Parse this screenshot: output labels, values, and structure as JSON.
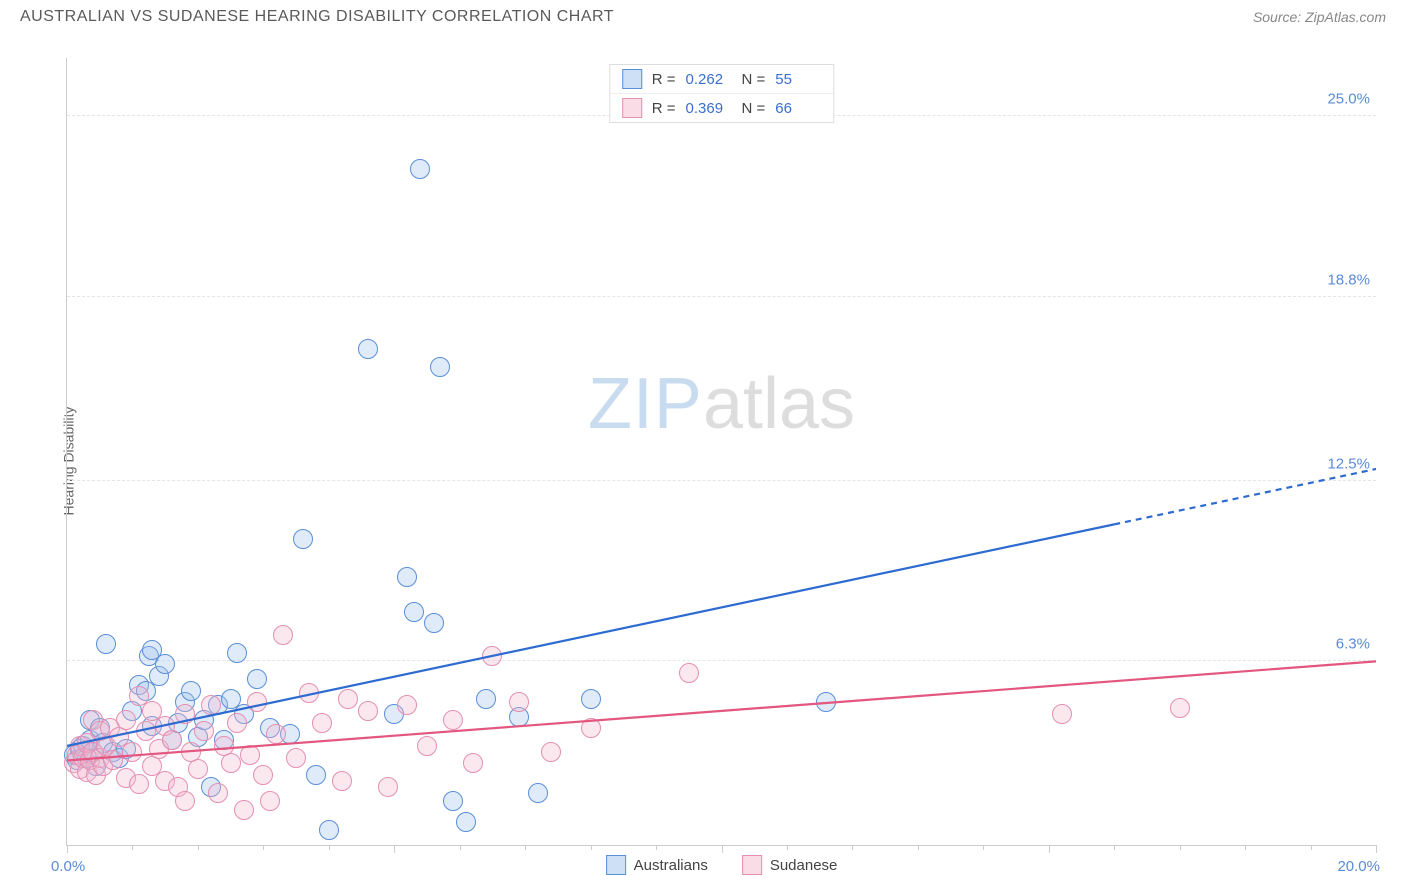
{
  "header": {
    "title": "AUSTRALIAN VS SUDANESE HEARING DISABILITY CORRELATION CHART",
    "source_prefix": "Source: ",
    "source_name": "ZipAtlas.com"
  },
  "chart": {
    "type": "scatter",
    "ylabel": "Hearing Disability",
    "xlim": [
      0,
      20
    ],
    "ylim": [
      0,
      27
    ],
    "x_tick_minor_step": 1,
    "x_tick_major_step": 5,
    "x_axis_labels": {
      "left": "0.0%",
      "right": "20.0%"
    },
    "y_gridlines": [
      {
        "value": 6.3,
        "label": "6.3%"
      },
      {
        "value": 12.5,
        "label": "12.5%"
      },
      {
        "value": 18.8,
        "label": "18.8%"
      },
      {
        "value": 25.0,
        "label": "25.0%"
      }
    ],
    "watermark": {
      "part1": "ZIP",
      "part2": "atlas"
    },
    "marker_radius": 9,
    "marker_border_width": 1.2,
    "marker_fill_opacity": 0.32,
    "background_color": "#ffffff",
    "grid_color": "#e5e5e5",
    "axis_color": "#cccccc",
    "tick_label_color": "#5b8bd4",
    "series": [
      {
        "key": "australians",
        "label": "Australians",
        "R": "0.262",
        "N": "55",
        "fill": "#9cc1eb",
        "stroke": "#5a8fd6",
        "line_color": "#2e6bd1",
        "line_width": 2.2,
        "trend": {
          "x1": 0,
          "y1": 3.4,
          "x2": 16,
          "y2": 11.0,
          "x3": 20,
          "y3": 12.9
        },
        "points": [
          [
            0.1,
            3.1
          ],
          [
            0.15,
            2.9
          ],
          [
            0.2,
            3.3
          ],
          [
            0.25,
            3.4
          ],
          [
            0.3,
            3.0
          ],
          [
            0.35,
            3.6
          ],
          [
            0.35,
            4.3
          ],
          [
            0.4,
            3.2
          ],
          [
            0.45,
            2.7
          ],
          [
            0.5,
            4.0
          ],
          [
            0.55,
            3.5
          ],
          [
            0.6,
            6.9
          ],
          [
            0.7,
            3.2
          ],
          [
            0.8,
            3.0
          ],
          [
            0.9,
            3.3
          ],
          [
            1.0,
            4.6
          ],
          [
            1.1,
            5.5
          ],
          [
            1.2,
            5.3
          ],
          [
            1.25,
            6.5
          ],
          [
            1.3,
            4.1
          ],
          [
            1.3,
            6.7
          ],
          [
            1.4,
            5.8
          ],
          [
            1.5,
            6.2
          ],
          [
            1.6,
            3.6
          ],
          [
            1.7,
            4.2
          ],
          [
            1.8,
            4.9
          ],
          [
            1.9,
            5.3
          ],
          [
            2.0,
            3.7
          ],
          [
            2.1,
            4.3
          ],
          [
            2.2,
            2.0
          ],
          [
            2.3,
            4.8
          ],
          [
            2.4,
            3.6
          ],
          [
            2.5,
            5.0
          ],
          [
            2.6,
            6.6
          ],
          [
            2.7,
            4.5
          ],
          [
            2.9,
            5.7
          ],
          [
            3.1,
            4.0
          ],
          [
            3.4,
            3.8
          ],
          [
            3.6,
            10.5
          ],
          [
            3.8,
            2.4
          ],
          [
            4.0,
            0.5
          ],
          [
            4.6,
            17.0
          ],
          [
            5.0,
            4.5
          ],
          [
            5.2,
            9.2
          ],
          [
            5.3,
            8.0
          ],
          [
            5.4,
            23.2
          ],
          [
            5.6,
            7.6
          ],
          [
            5.7,
            16.4
          ],
          [
            5.9,
            1.5
          ],
          [
            6.1,
            0.8
          ],
          [
            6.4,
            5.0
          ],
          [
            6.9,
            4.4
          ],
          [
            7.2,
            1.8
          ],
          [
            8.0,
            5.0
          ],
          [
            11.6,
            4.9
          ]
        ]
      },
      {
        "key": "sudanese",
        "label": "Sudanese",
        "R": "0.369",
        "N": "66",
        "fill": "#f4b9cd",
        "stroke": "#e58fb2",
        "line_color": "#e3567f",
        "line_width": 2.2,
        "trend": {
          "x1": 0,
          "y1": 2.9,
          "x2": 20,
          "y2": 6.3,
          "x3": 20,
          "y3": 6.3
        },
        "points": [
          [
            0.1,
            2.8
          ],
          [
            0.15,
            3.1
          ],
          [
            0.2,
            2.6
          ],
          [
            0.2,
            3.4
          ],
          [
            0.25,
            3.0
          ],
          [
            0.3,
            2.5
          ],
          [
            0.3,
            3.5
          ],
          [
            0.35,
            2.9
          ],
          [
            0.4,
            3.2
          ],
          [
            0.4,
            4.3
          ],
          [
            0.45,
            2.4
          ],
          [
            0.5,
            3.0
          ],
          [
            0.5,
            3.9
          ],
          [
            0.55,
            2.7
          ],
          [
            0.6,
            3.4
          ],
          [
            0.65,
            4.0
          ],
          [
            0.7,
            2.9
          ],
          [
            0.8,
            3.7
          ],
          [
            0.9,
            2.3
          ],
          [
            0.9,
            4.3
          ],
          [
            1.0,
            3.2
          ],
          [
            1.1,
            2.1
          ],
          [
            1.1,
            5.1
          ],
          [
            1.2,
            3.9
          ],
          [
            1.3,
            2.7
          ],
          [
            1.3,
            4.6
          ],
          [
            1.4,
            3.3
          ],
          [
            1.5,
            2.2
          ],
          [
            1.5,
            4.1
          ],
          [
            1.6,
            3.6
          ],
          [
            1.7,
            2.0
          ],
          [
            1.8,
            1.5
          ],
          [
            1.8,
            4.5
          ],
          [
            1.9,
            3.2
          ],
          [
            2.0,
            2.6
          ],
          [
            2.1,
            3.9
          ],
          [
            2.2,
            4.8
          ],
          [
            2.3,
            1.8
          ],
          [
            2.4,
            3.4
          ],
          [
            2.5,
            2.8
          ],
          [
            2.6,
            4.2
          ],
          [
            2.7,
            1.2
          ],
          [
            2.8,
            3.1
          ],
          [
            2.9,
            4.9
          ],
          [
            3.0,
            2.4
          ],
          [
            3.1,
            1.5
          ],
          [
            3.2,
            3.8
          ],
          [
            3.3,
            7.2
          ],
          [
            3.5,
            3.0
          ],
          [
            3.7,
            5.2
          ],
          [
            3.9,
            4.2
          ],
          [
            4.2,
            2.2
          ],
          [
            4.3,
            5.0
          ],
          [
            4.6,
            4.6
          ],
          [
            4.9,
            2.0
          ],
          [
            5.2,
            4.8
          ],
          [
            5.5,
            3.4
          ],
          [
            5.9,
            4.3
          ],
          [
            6.2,
            2.8
          ],
          [
            6.5,
            6.5
          ],
          [
            6.9,
            4.9
          ],
          [
            7.4,
            3.2
          ],
          [
            8.0,
            4.0
          ],
          [
            9.5,
            5.9
          ],
          [
            15.2,
            4.5
          ],
          [
            17.0,
            4.7
          ]
        ]
      }
    ],
    "legend_top": {
      "r_label": "R =",
      "n_label": "N ="
    },
    "legend_bottom_labels": [
      "Australians",
      "Sudanese"
    ]
  }
}
